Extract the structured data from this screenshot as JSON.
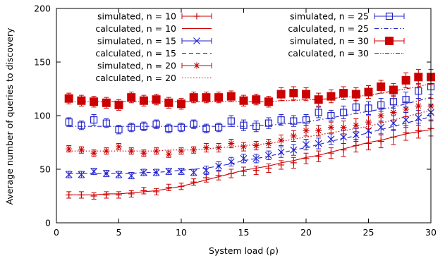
{
  "chart_data": {
    "type": "line",
    "title": "",
    "xlabel": "System load (ρ)",
    "ylabel": "Average number of queries to discovery",
    "xlim": [
      0,
      30
    ],
    "ylim": [
      0,
      200
    ],
    "xticks": [
      0,
      5,
      10,
      15,
      20,
      25,
      30
    ],
    "yticks": [
      0,
      50,
      100,
      150,
      200
    ],
    "grid": false,
    "legend_placement": "top, two columns",
    "x": [
      1,
      2,
      3,
      4,
      5,
      6,
      7,
      8,
      9,
      10,
      11,
      12,
      13,
      14,
      15,
      16,
      17,
      18,
      19,
      20,
      21,
      22,
      23,
      24,
      25,
      26,
      27,
      28,
      29,
      30
    ],
    "series": [
      {
        "name": "simulated, n = 10",
        "kind": "simulated",
        "n": 10,
        "color": "#cc0000",
        "marker": "plus",
        "values": [
          26,
          26,
          25,
          26,
          26,
          27,
          30,
          29,
          33,
          34,
          38,
          42,
          44,
          46,
          48,
          49,
          51,
          54,
          56,
          60,
          62,
          65,
          68,
          72,
          74,
          76,
          80,
          84,
          86,
          88
        ],
        "errors": [
          3,
          3,
          3,
          3,
          3,
          3,
          3,
          3,
          3,
          3,
          3,
          4,
          4,
          4,
          4,
          4,
          4,
          4,
          5,
          5,
          5,
          5,
          6,
          6,
          6,
          6,
          7,
          7,
          7,
          7
        ]
      },
      {
        "name": "calculated, n = 10",
        "kind": "calculated",
        "n": 10,
        "color": "#cc0000",
        "dash": "solid",
        "values": [
          26,
          26,
          26,
          27,
          27,
          28,
          29,
          30,
          32,
          34,
          37,
          40,
          43,
          46,
          49,
          51,
          53,
          56,
          58,
          61,
          63,
          66,
          69,
          72,
          75,
          77,
          80,
          83,
          85,
          87
        ]
      },
      {
        "name": "simulated, n = 15",
        "kind": "simulated",
        "n": 15,
        "color": "#2222cc",
        "marker": "x",
        "values": [
          45,
          45,
          48,
          46,
          45,
          44,
          47,
          47,
          48,
          48,
          47,
          49,
          53,
          57,
          60,
          60,
          63,
          66,
          68,
          73,
          74,
          78,
          80,
          82,
          86,
          89,
          93,
          96,
          98,
          103
        ],
        "errors": [
          3,
          3,
          3,
          3,
          3,
          3,
          3,
          3,
          3,
          3,
          3,
          4,
          4,
          4,
          4,
          4,
          4,
          5,
          5,
          5,
          5,
          5,
          6,
          6,
          6,
          6,
          7,
          7,
          7,
          7
        ]
      },
      {
        "name": "calculated, n = 15",
        "kind": "calculated",
        "n": 15,
        "color": "#2222cc",
        "dash": "dashed",
        "values": [
          46,
          46,
          46,
          46,
          46,
          46,
          47,
          47,
          48,
          49,
          50,
          51,
          53,
          55,
          58,
          60,
          62,
          65,
          68,
          70,
          73,
          76,
          79,
          81,
          84,
          87,
          90,
          93,
          96,
          99
        ]
      },
      {
        "name": "simulated, n = 20",
        "kind": "simulated",
        "n": 20,
        "color": "#cc0000",
        "marker": "star",
        "values": [
          69,
          68,
          65,
          67,
          71,
          67,
          65,
          67,
          64,
          67,
          68,
          70,
          70,
          74,
          71,
          72,
          74,
          77,
          81,
          86,
          86,
          89,
          89,
          91,
          94,
          100,
          103,
          106,
          109,
          109
        ],
        "errors": [
          3,
          3,
          3,
          3,
          3,
          3,
          3,
          3,
          3,
          3,
          3,
          4,
          4,
          4,
          4,
          4,
          4,
          5,
          5,
          5,
          5,
          5,
          6,
          6,
          6,
          6,
          7,
          7,
          7,
          7
        ]
      },
      {
        "name": "calculated, n = 20",
        "kind": "calculated",
        "n": 20,
        "color": "#cc0000",
        "dash": "dotted",
        "values": [
          67,
          67,
          67,
          67,
          67,
          67,
          67,
          67,
          68,
          68,
          68,
          69,
          70,
          71,
          72,
          73,
          74,
          76,
          78,
          80,
          82,
          84,
          86,
          88,
          90,
          93,
          96,
          99,
          102,
          105
        ]
      },
      {
        "name": "simulated, n = 25",
        "kind": "simulated",
        "n": 25,
        "color": "#2222cc",
        "marker": "open-square",
        "values": [
          94,
          91,
          96,
          93,
          87,
          89,
          90,
          92,
          88,
          89,
          92,
          88,
          89,
          95,
          91,
          90,
          93,
          96,
          95,
          96,
          103,
          100,
          103,
          108,
          107,
          110,
          113,
          115,
          123,
          127
        ],
        "errors": [
          4,
          4,
          5,
          4,
          4,
          4,
          4,
          4,
          4,
          4,
          4,
          4,
          4,
          5,
          5,
          5,
          5,
          5,
          5,
          5,
          5,
          5,
          6,
          6,
          6,
          6,
          6,
          7,
          7,
          7
        ]
      },
      {
        "name": "calculated, n = 25",
        "kind": "calculated",
        "n": 25,
        "color": "#2222cc",
        "dash": "dash-dot",
        "values": [
          90,
          90,
          90,
          90,
          90,
          90,
          90,
          90,
          90,
          90,
          90,
          90,
          90,
          90,
          90,
          91,
          91,
          92,
          93,
          94,
          96,
          98,
          100,
          102,
          104,
          106,
          108,
          111,
          114,
          117
        ]
      },
      {
        "name": "simulated, n = 30",
        "kind": "simulated",
        "n": 30,
        "color": "#cc0000",
        "marker": "filled-square",
        "values": [
          116,
          114,
          113,
          112,
          110,
          117,
          114,
          115,
          112,
          111,
          117,
          117,
          117,
          118,
          114,
          115,
          113,
          120,
          121,
          120,
          115,
          118,
          121,
          120,
          122,
          127,
          124,
          133,
          136,
          136
        ],
        "errors": [
          5,
          5,
          5,
          5,
          5,
          5,
          5,
          5,
          5,
          5,
          5,
          5,
          5,
          5,
          5,
          5,
          5,
          6,
          6,
          6,
          6,
          6,
          6,
          6,
          6,
          6,
          6,
          7,
          7,
          7
        ]
      },
      {
        "name": "calculated, n = 30",
        "kind": "calculated",
        "n": 30,
        "color": "#cc0000",
        "dash": "dash-dot-dot",
        "values": [
          113,
          113,
          113,
          113,
          113,
          113,
          113,
          113,
          113,
          113,
          113,
          113,
          113,
          113,
          113,
          113,
          113,
          114,
          114,
          115,
          115,
          116,
          117,
          118,
          119,
          121,
          123,
          125,
          127,
          130
        ]
      }
    ]
  }
}
